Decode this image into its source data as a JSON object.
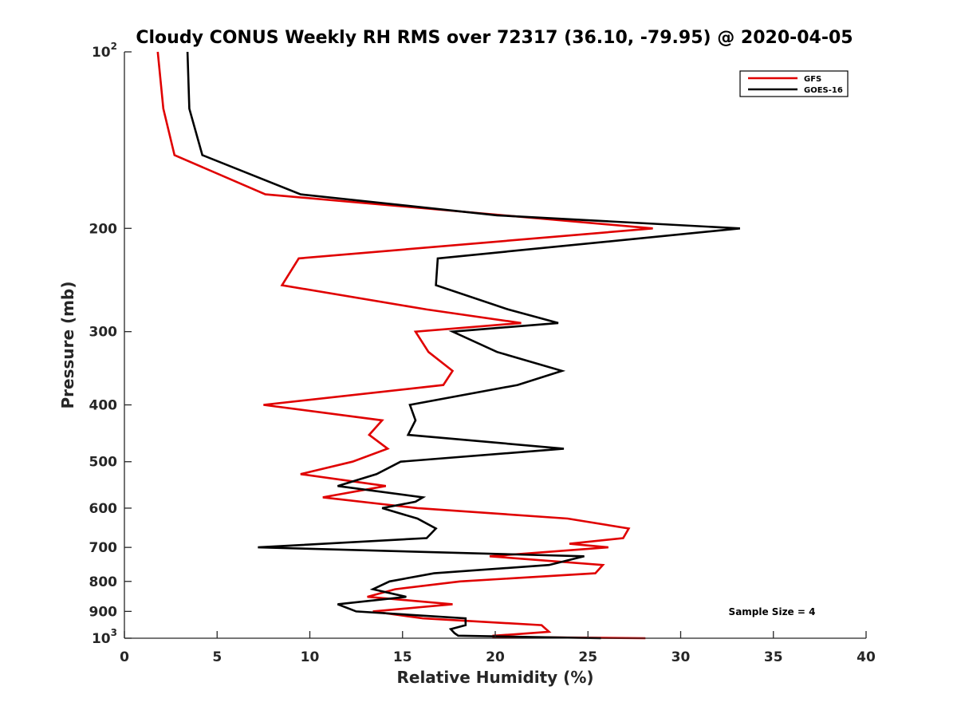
{
  "chart_data": {
    "type": "line",
    "title": "Cloudy CONUS Weekly RH RMS over 72317 (36.10, -79.95) @ 2020-04-05",
    "xlabel": "Relative Humidity (%)",
    "ylabel": "Pressure (mb)",
    "xlim": [
      0,
      40
    ],
    "ylim": [
      100,
      1000
    ],
    "y_scale": "log",
    "y_reversed": true,
    "grid": false,
    "legend_position": "top-right",
    "x_ticks": [
      "0",
      "5",
      "10",
      "15",
      "20",
      "25",
      "30",
      "35",
      "40"
    ],
    "y_ticks": [
      {
        "value": 100,
        "base": "10",
        "exp": "2"
      },
      {
        "value": 200,
        "label": "200"
      },
      {
        "value": 300,
        "label": "300"
      },
      {
        "value": 400,
        "label": "400"
      },
      {
        "value": 500,
        "label": "500"
      },
      {
        "value": 600,
        "label": "600"
      },
      {
        "value": 700,
        "label": "700"
      },
      {
        "value": 800,
        "label": "800"
      },
      {
        "value": 900,
        "label": "900"
      },
      {
        "value": 1000,
        "base": "10",
        "exp": "3"
      }
    ],
    "series": [
      {
        "name": "GFS",
        "color": "#e00000",
        "points": [
          [
            1.8,
            100
          ],
          [
            2.1,
            125
          ],
          [
            2.7,
            150
          ],
          [
            7.6,
            175
          ],
          [
            28.5,
            200
          ],
          [
            9.4,
            225
          ],
          [
            8.5,
            250
          ],
          [
            16.3,
            275
          ],
          [
            21.4,
            290
          ],
          [
            15.7,
            300
          ],
          [
            16.4,
            325
          ],
          [
            17.7,
            350
          ],
          [
            17.2,
            370
          ],
          [
            7.5,
            400
          ],
          [
            13.9,
            425
          ],
          [
            13.2,
            450
          ],
          [
            14.2,
            475
          ],
          [
            12.3,
            500
          ],
          [
            9.5,
            525
          ],
          [
            14.1,
            550
          ],
          [
            10.7,
            575
          ],
          [
            15.8,
            600
          ],
          [
            23.9,
            625
          ],
          [
            27.2,
            650
          ],
          [
            26.9,
            675
          ],
          [
            24.0,
            690
          ],
          [
            26.1,
            700
          ],
          [
            19.7,
            725
          ],
          [
            25.8,
            750
          ],
          [
            25.4,
            775
          ],
          [
            18.1,
            800
          ],
          [
            14.6,
            825
          ],
          [
            13.1,
            850
          ],
          [
            17.7,
            875
          ],
          [
            13.4,
            900
          ],
          [
            16.1,
            925
          ],
          [
            22.5,
            950
          ],
          [
            22.9,
            975
          ],
          [
            21.0,
            985
          ],
          [
            19.9,
            990
          ],
          [
            19.9,
            995
          ],
          [
            28.1,
            1000
          ]
        ]
      },
      {
        "name": "GOES-16",
        "color": "#000000",
        "points": [
          [
            3.4,
            100
          ],
          [
            3.5,
            125
          ],
          [
            4.2,
            150
          ],
          [
            9.5,
            175
          ],
          [
            20.1,
            190
          ],
          [
            33.2,
            200
          ],
          [
            16.9,
            225
          ],
          [
            16.8,
            250
          ],
          [
            20.7,
            275
          ],
          [
            23.4,
            290
          ],
          [
            17.7,
            300
          ],
          [
            20.1,
            325
          ],
          [
            23.6,
            350
          ],
          [
            21.2,
            370
          ],
          [
            15.4,
            400
          ],
          [
            15.7,
            425
          ],
          [
            15.3,
            450
          ],
          [
            23.7,
            475
          ],
          [
            14.9,
            500
          ],
          [
            13.6,
            525
          ],
          [
            11.5,
            550
          ],
          [
            16.1,
            575
          ],
          [
            15.7,
            585
          ],
          [
            13.9,
            600
          ],
          [
            15.8,
            625
          ],
          [
            16.8,
            650
          ],
          [
            16.3,
            675
          ],
          [
            7.2,
            700
          ],
          [
            24.8,
            725
          ],
          [
            22.9,
            750
          ],
          [
            16.7,
            775
          ],
          [
            14.3,
            800
          ],
          [
            13.4,
            825
          ],
          [
            15.2,
            850
          ],
          [
            11.5,
            875
          ],
          [
            12.5,
            900
          ],
          [
            18.4,
            925
          ],
          [
            18.4,
            950
          ],
          [
            17.6,
            965
          ],
          [
            17.8,
            980
          ],
          [
            18.0,
            990
          ],
          [
            25.7,
            1000
          ]
        ]
      }
    ],
    "legend": [
      "GFS",
      "GOES-16"
    ],
    "annotation": "Sample Size = 4"
  }
}
